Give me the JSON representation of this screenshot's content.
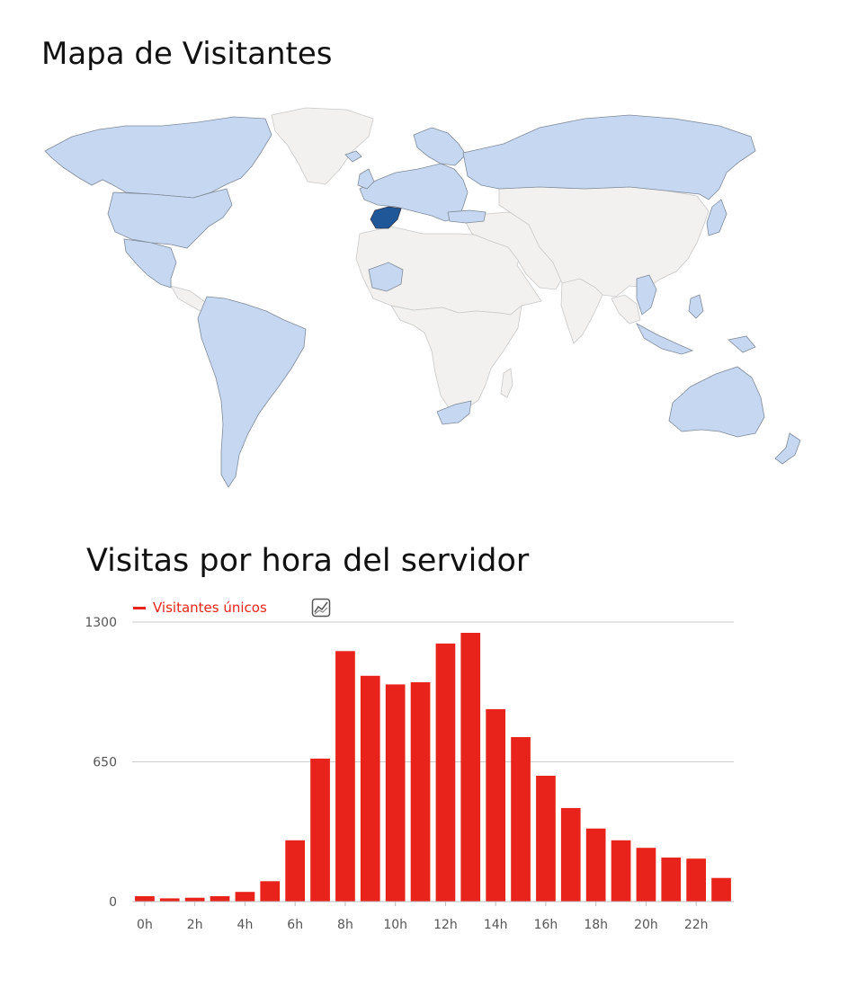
{
  "map": {
    "title": "Mapa de Visitantes",
    "colors": {
      "ocean": "#ffffff",
      "no_visits": "#f2f1f0",
      "visits": "#c6d8f1",
      "highlight": "#1f5799",
      "border": "#7f8a99",
      "border_light": "#c9c9c9"
    }
  },
  "chart": {
    "title": "Visitas por hora del servidor",
    "legend_label": "Visitantes únicos",
    "icon": "line-chart-icon",
    "color": "#e8231b"
  },
  "chart_data": {
    "type": "bar",
    "title": "Visitas por hora del servidor",
    "series": [
      {
        "name": "Visitantes únicos",
        "values": [
          25,
          15,
          18,
          25,
          45,
          95,
          285,
          665,
          1165,
          1050,
          1010,
          1020,
          1200,
          1250,
          895,
          765,
          585,
          435,
          340,
          285,
          250,
          205,
          200,
          110
        ]
      }
    ],
    "categories": [
      "0h",
      "1h",
      "2h",
      "3h",
      "4h",
      "5h",
      "6h",
      "7h",
      "8h",
      "9h",
      "10h",
      "11h",
      "12h",
      "13h",
      "14h",
      "15h",
      "16h",
      "17h",
      "18h",
      "19h",
      "20h",
      "21h",
      "22h",
      "23h"
    ],
    "x_tick_labels": [
      "0h",
      "2h",
      "4h",
      "6h",
      "8h",
      "10h",
      "12h",
      "14h",
      "16h",
      "18h",
      "20h",
      "22h"
    ],
    "y_ticks": [
      0,
      650,
      1300
    ],
    "ylim": [
      0,
      1300
    ],
    "grid": true,
    "legend_position": "top-left"
  }
}
